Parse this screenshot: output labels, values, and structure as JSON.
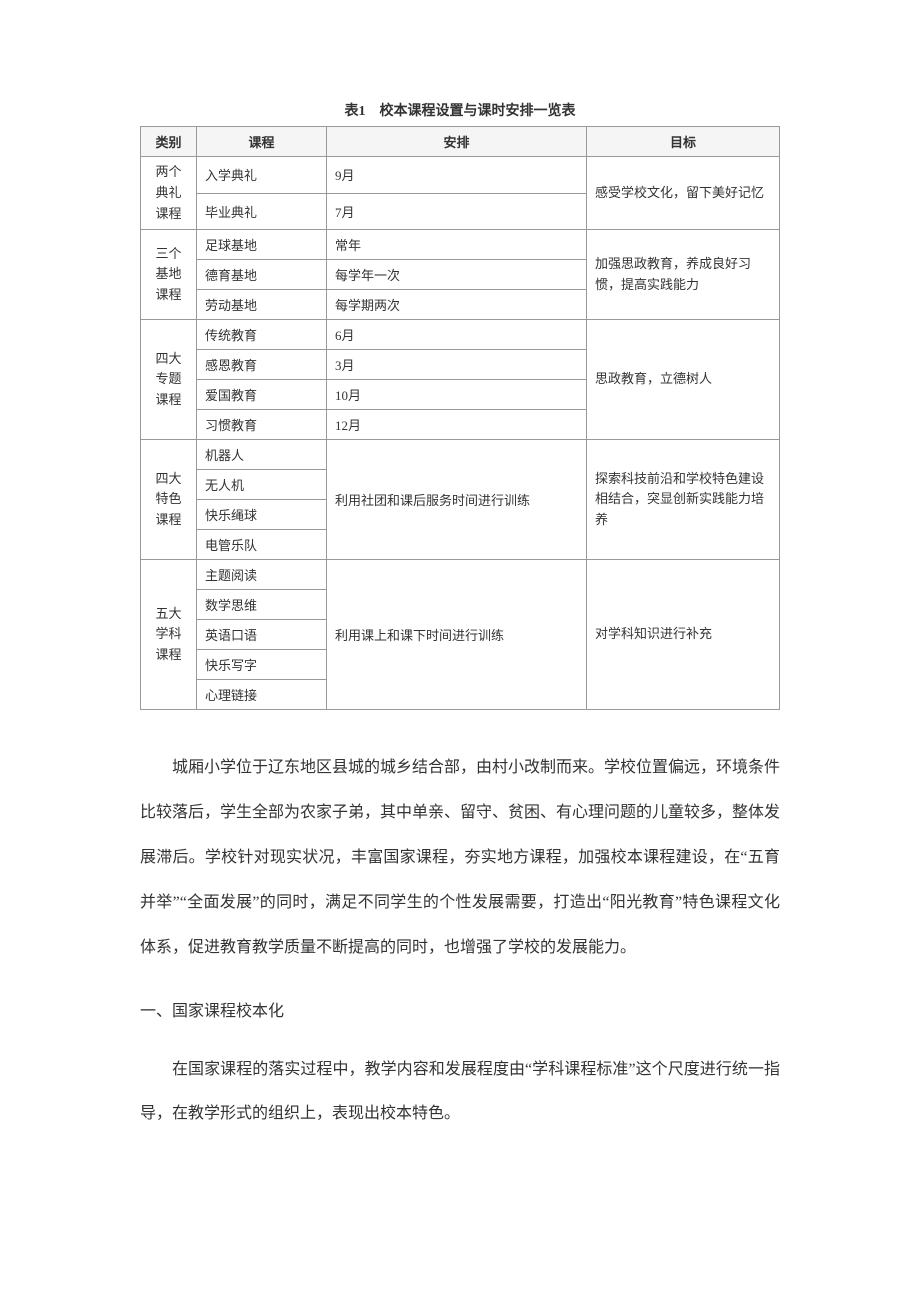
{
  "table": {
    "caption": "表1　校本课程设置与课时安排一览表",
    "headers": {
      "category": "类别",
      "course": "课程",
      "arrange": "安排",
      "goal": "目标"
    },
    "groups": [
      {
        "category": "两个\n典礼\n课程",
        "goal": "感受学校文化，留下美好记忆",
        "rows": [
          {
            "course": "入学典礼",
            "arrange": "9月"
          },
          {
            "course": "毕业典礼",
            "arrange": "7月"
          }
        ]
      },
      {
        "category": "三个\n基地\n课程",
        "goal": "加强思政教育，养成良好习惯，提高实践能力",
        "rows": [
          {
            "course": "足球基地",
            "arrange": "常年"
          },
          {
            "course": "德育基地",
            "arrange": "每学年一次"
          },
          {
            "course": "劳动基地",
            "arrange": "每学期两次"
          }
        ]
      },
      {
        "category": "四大\n专题\n课程",
        "goal": "思政教育，立德树人",
        "rows": [
          {
            "course": "传统教育",
            "arrange": "6月"
          },
          {
            "course": "感恩教育",
            "arrange": "3月"
          },
          {
            "course": "爱国教育",
            "arrange": "10月"
          },
          {
            "course": "习惯教育",
            "arrange": "12月"
          }
        ]
      },
      {
        "category": "四大\n特色\n课程",
        "goal": "探索科技前沿和学校特色建设相结合，突显创新实践能力培养",
        "arrange_shared": "利用社团和课后服务时间进行训练",
        "rows": [
          {
            "course": "机器人"
          },
          {
            "course": "无人机"
          },
          {
            "course": "快乐绳球"
          },
          {
            "course": "电管乐队"
          }
        ]
      },
      {
        "category": "五大\n学科\n课程",
        "goal": "对学科知识进行补充",
        "arrange_shared": "利用课上和课下时间进行训练",
        "rows": [
          {
            "course": "主题阅读"
          },
          {
            "course": "数学思维"
          },
          {
            "course": "英语口语"
          },
          {
            "course": "快乐写字"
          },
          {
            "course": "心理链接"
          }
        ]
      }
    ]
  },
  "paragraphs": {
    "p1": "城厢小学位于辽东地区县城的城乡结合部，由村小改制而来。学校位置偏远，环境条件比较落后，学生全部为农家子弟，其中单亲、留守、贫困、有心理问题的儿童较多，整体发展滞后。学校针对现实状况，丰富国家课程，夯实地方课程，加强校本课程建设，在“五育并举”“全面发展”的同时，满足不同学生的个性发展需要，打造出“阳光教育”特色课程文化体系，促进教育教学质量不断提高的同时，也增强了学校的发展能力。"
  },
  "sections": {
    "h1": "一、国家课程校本化",
    "s1p1": "在国家课程的落实过程中，教学内容和发展程度由“学科课程标准”这个尺度进行统一指导，在教学形式的组织上，表现出校本特色。"
  }
}
